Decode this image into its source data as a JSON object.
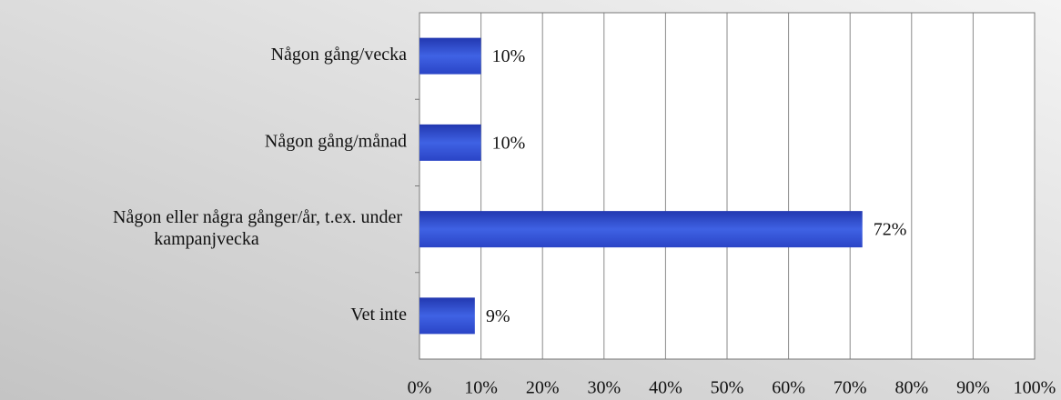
{
  "chart_data": {
    "type": "bar",
    "orientation": "horizontal",
    "categories": [
      "Någon gång/vecka",
      "Någon gång/månad",
      "Någon eller några gånger/år, t.ex. under kampanjvecka",
      "Vet inte"
    ],
    "values": [
      10,
      10,
      72,
      9
    ],
    "value_labels": [
      "10%",
      "10%",
      "72%",
      "9%"
    ],
    "color": "#2f4fd6",
    "xlim": [
      0,
      100
    ],
    "xticks": [
      {
        "value": 0,
        "label": "0%"
      },
      {
        "value": 10,
        "label": "10%"
      },
      {
        "value": 20,
        "label": "20%"
      },
      {
        "value": 30,
        "label": "30%"
      },
      {
        "value": 40,
        "label": "40%"
      },
      {
        "value": 50,
        "label": "50%"
      },
      {
        "value": 60,
        "label": "60%"
      },
      {
        "value": 70,
        "label": "70%"
      },
      {
        "value": 80,
        "label": "80%"
      },
      {
        "value": 90,
        "label": "90%"
      },
      {
        "value": 100,
        "label": "100%"
      }
    ],
    "grid": true
  }
}
